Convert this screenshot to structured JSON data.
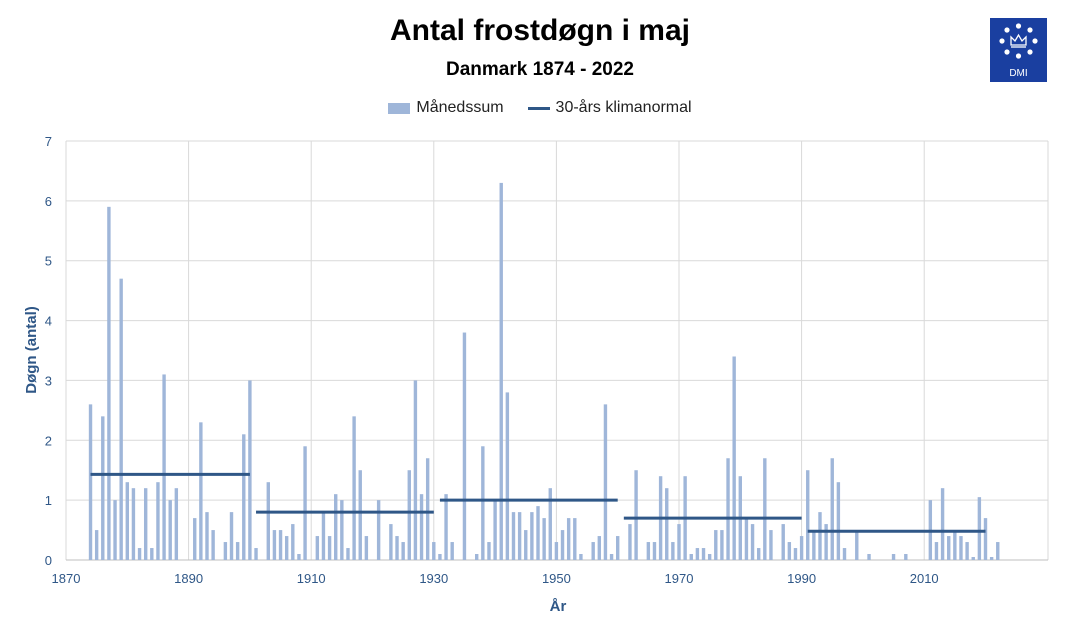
{
  "title": "Antal frostdøgn i maj",
  "subtitle": "Danmark 1874 - 2022",
  "logo_text": "DMI",
  "legend": {
    "bars": "Månedssum",
    "normal": "30-års klimanormal"
  },
  "colors": {
    "bar": "#9fb6d9",
    "normal": "#2f5787",
    "grid": "#d9d9d9",
    "axis_text": "#2f5787",
    "logo": "#1a3fa0"
  },
  "chart_data": {
    "type": "bar",
    "xlabel": "År",
    "ylabel": "Døgn (antal)",
    "xlim": [
      1870,
      2022
    ],
    "ylim": [
      0,
      7
    ],
    "x_ticks": [
      1870,
      1890,
      1910,
      1930,
      1950,
      1970,
      1990,
      2010
    ],
    "y_ticks": [
      0,
      1,
      2,
      3,
      4,
      5,
      6,
      7
    ],
    "grid": true,
    "legend_position": "top-center",
    "series": [
      {
        "name": "Månedssum",
        "type": "bar",
        "x": [
          1874,
          1875,
          1876,
          1877,
          1878,
          1879,
          1880,
          1881,
          1882,
          1883,
          1884,
          1885,
          1886,
          1887,
          1888,
          1891,
          1892,
          1893,
          1894,
          1896,
          1897,
          1898,
          1899,
          1900,
          1901,
          1903,
          1904,
          1905,
          1906,
          1907,
          1908,
          1909,
          1911,
          1912,
          1913,
          1914,
          1915,
          1916,
          1917,
          1918,
          1919,
          1921,
          1923,
          1924,
          1925,
          1926,
          1927,
          1928,
          1929,
          1930,
          1931,
          1932,
          1933,
          1935,
          1937,
          1938,
          1939,
          1940,
          1941,
          1942,
          1943,
          1944,
          1945,
          1946,
          1947,
          1948,
          1949,
          1950,
          1951,
          1952,
          1953,
          1954,
          1956,
          1957,
          1958,
          1959,
          1960,
          1962,
          1963,
          1965,
          1966,
          1967,
          1968,
          1969,
          1970,
          1971,
          1972,
          1973,
          1974,
          1975,
          1976,
          1977,
          1978,
          1979,
          1980,
          1981,
          1982,
          1983,
          1984,
          1985,
          1987,
          1988,
          1989,
          1990,
          1991,
          1992,
          1993,
          1994,
          1995,
          1996,
          1997,
          1999,
          2001,
          2005,
          2007,
          2011,
          2012,
          2013,
          2014,
          2015,
          2016,
          2017,
          2018,
          2019,
          2020,
          2021,
          2022
        ],
        "values": [
          2.6,
          0.5,
          2.4,
          5.9,
          1.0,
          4.7,
          1.3,
          1.2,
          0.2,
          1.2,
          0.2,
          1.3,
          3.1,
          1.0,
          1.2,
          0.7,
          2.3,
          0.8,
          0.5,
          0.3,
          0.8,
          0.3,
          2.1,
          3.0,
          0.2,
          1.3,
          0.5,
          0.5,
          0.4,
          0.6,
          0.1,
          1.9,
          0.4,
          0.8,
          0.4,
          1.1,
          1.0,
          0.2,
          2.4,
          1.5,
          0.4,
          1.0,
          0.6,
          0.4,
          0.3,
          1.5,
          3.0,
          1.1,
          1.7,
          0.3,
          0.1,
          1.1,
          0.3,
          3.8,
          0.1,
          1.9,
          0.3,
          1.0,
          6.3,
          2.8,
          0.8,
          0.8,
          0.5,
          0.8,
          0.9,
          0.7,
          1.2,
          0.3,
          0.5,
          0.7,
          0.7,
          0.1,
          0.3,
          0.4,
          2.6,
          0.1,
          0.4,
          0.6,
          1.5,
          0.3,
          0.3,
          1.4,
          1.2,
          0.3,
          0.6,
          1.4,
          0.1,
          0.2,
          0.2,
          0.1,
          0.5,
          0.5,
          1.7,
          3.4,
          1.4,
          0.7,
          0.6,
          0.2,
          1.7,
          0.5,
          0.6,
          0.3,
          0.2,
          0.4,
          1.5,
          0.5,
          0.8,
          0.6,
          1.7,
          1.3,
          0.2,
          0.5,
          0.1,
          0.1,
          0.1,
          1.0,
          0.3,
          1.2,
          0.4,
          0.5,
          0.4,
          0.3,
          0.05,
          1.05,
          0.7,
          0.05,
          0.3
        ]
      },
      {
        "name": "30-års klimanormal",
        "type": "step",
        "segments": [
          {
            "from": 1874,
            "to": 1900,
            "value": 1.43
          },
          {
            "from": 1901,
            "to": 1930,
            "value": 0.8
          },
          {
            "from": 1931,
            "to": 1960,
            "value": 1.0
          },
          {
            "from": 1961,
            "to": 1990,
            "value": 0.7
          },
          {
            "from": 1991,
            "to": 2020,
            "value": 0.48
          }
        ]
      }
    ]
  }
}
